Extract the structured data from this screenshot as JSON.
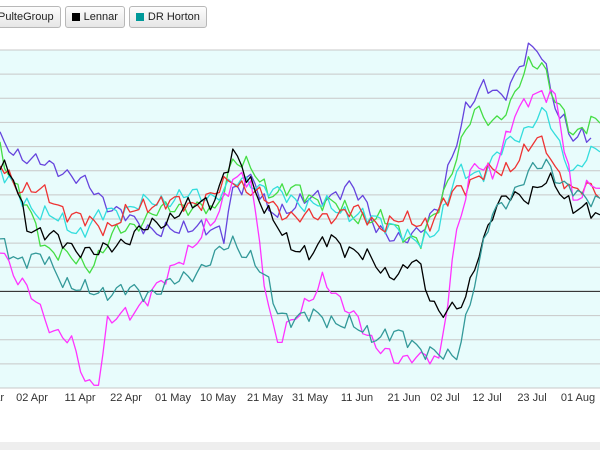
{
  "legend": {
    "items": [
      {
        "label": "PulteGroup",
        "color": "#ff33ff"
      },
      {
        "label": "Lennar",
        "color": "#000000"
      },
      {
        "label": "DR Horton",
        "color": "#009999"
      }
    ]
  },
  "chart_data": {
    "type": "line",
    "grid": true,
    "plot_background": "#e8fcfc",
    "ylim": [
      0,
      350
    ],
    "baseline_value": 100,
    "x_tick_labels": [
      "ar",
      "02 Apr",
      "11 Apr",
      "22 Apr",
      "01 May",
      "10 May",
      "21 May",
      "31 May",
      "11 Jun",
      "21 Jun",
      "02 Jul",
      "12 Jul",
      "23 Jul",
      "01 Aug"
    ],
    "series": [
      {
        "color": "#6644dd",
        "anchors": [
          [
            0,
            255
          ],
          [
            8,
            233
          ],
          [
            14,
            227
          ],
          [
            20,
            207
          ],
          [
            30,
            170
          ],
          [
            40,
            160
          ],
          [
            44,
            172
          ],
          [
            50,
            155
          ],
          [
            52,
            206
          ],
          [
            56,
            220
          ],
          [
            60,
            180
          ],
          [
            66,
            190
          ],
          [
            72,
            198
          ],
          [
            78,
            207
          ],
          [
            82,
            190
          ],
          [
            84,
            170
          ],
          [
            88,
            151
          ],
          [
            90,
            150
          ],
          [
            92,
            160
          ],
          [
            98,
            185
          ],
          [
            104,
            293
          ],
          [
            108,
            310
          ],
          [
            112,
            302
          ],
          [
            118,
            348
          ],
          [
            121,
            346
          ],
          [
            124,
            296
          ],
          [
            128,
            255
          ],
          [
            132,
            262
          ]
        ]
      },
      {
        "color": "#44dd44",
        "anchors": [
          [
            0,
            250
          ],
          [
            3,
            212
          ],
          [
            6,
            185
          ],
          [
            10,
            148
          ],
          [
            14,
            138
          ],
          [
            18,
            128
          ],
          [
            20,
            127
          ],
          [
            26,
            160
          ],
          [
            32,
            175
          ],
          [
            40,
            190
          ],
          [
            48,
            182
          ],
          [
            52,
            238
          ],
          [
            56,
            225
          ],
          [
            60,
            205
          ],
          [
            66,
            204
          ],
          [
            72,
            195
          ],
          [
            76,
            186
          ],
          [
            80,
            178
          ],
          [
            86,
            172
          ],
          [
            90,
            162
          ],
          [
            94,
            150
          ],
          [
            98,
            188
          ],
          [
            102,
            243
          ],
          [
            106,
            285
          ],
          [
            110,
            278
          ],
          [
            114,
            290
          ],
          [
            118,
            336
          ],
          [
            121,
            340
          ],
          [
            124,
            296
          ],
          [
            128,
            262
          ],
          [
            132,
            280
          ],
          [
            134,
            272
          ]
        ]
      },
      {
        "color": "#33dddd",
        "anchors": [
          [
            0,
            225
          ],
          [
            4,
            200
          ],
          [
            8,
            185
          ],
          [
            14,
            170
          ],
          [
            18,
            162
          ],
          [
            24,
            182
          ],
          [
            30,
            188
          ],
          [
            40,
            198
          ],
          [
            48,
            200
          ],
          [
            52,
            210
          ],
          [
            56,
            215
          ],
          [
            62,
            200
          ],
          [
            70,
            190
          ],
          [
            76,
            185
          ],
          [
            82,
            175
          ],
          [
            88,
            170
          ],
          [
            90,
            160
          ],
          [
            92,
            150
          ],
          [
            94,
            150
          ],
          [
            98,
            170
          ],
          [
            102,
            220
          ],
          [
            108,
            225
          ],
          [
            114,
            255
          ],
          [
            120,
            280
          ],
          [
            122,
            282
          ],
          [
            124,
            260
          ],
          [
            128,
            225
          ],
          [
            132,
            240
          ],
          [
            134,
            248
          ]
        ]
      },
      {
        "color": "#ee3333",
        "anchors": [
          [
            0,
            230
          ],
          [
            4,
            210
          ],
          [
            10,
            200
          ],
          [
            16,
            180
          ],
          [
            20,
            170
          ],
          [
            24,
            168
          ],
          [
            28,
            178
          ],
          [
            34,
            193
          ],
          [
            42,
            190
          ],
          [
            48,
            200
          ],
          [
            52,
            217
          ],
          [
            56,
            205
          ],
          [
            62,
            185
          ],
          [
            68,
            175
          ],
          [
            74,
            180
          ],
          [
            80,
            182
          ],
          [
            86,
            168
          ],
          [
            92,
            175
          ],
          [
            96,
            170
          ],
          [
            98,
            180
          ],
          [
            102,
            208
          ],
          [
            108,
            220
          ],
          [
            114,
            230
          ],
          [
            120,
            255
          ],
          [
            122,
            252
          ],
          [
            124,
            230
          ],
          [
            128,
            200
          ],
          [
            132,
            210
          ],
          [
            134,
            205
          ]
        ]
      },
      {
        "color": "#ff33ff",
        "anchors": [
          [
            0,
            150
          ],
          [
            4,
            110
          ],
          [
            8,
            90
          ],
          [
            12,
            60
          ],
          [
            16,
            45
          ],
          [
            18,
            20
          ],
          [
            20,
            5
          ],
          [
            22,
            10
          ],
          [
            24,
            65
          ],
          [
            30,
            82
          ],
          [
            36,
            106
          ],
          [
            40,
            135
          ],
          [
            44,
            150
          ],
          [
            48,
            175
          ],
          [
            52,
            220
          ],
          [
            56,
            210
          ],
          [
            60,
            85
          ],
          [
            62,
            50
          ],
          [
            66,
            70
          ],
          [
            72,
            115
          ],
          [
            76,
            85
          ],
          [
            80,
            75
          ],
          [
            84,
            40
          ],
          [
            88,
            30
          ],
          [
            92,
            35
          ],
          [
            94,
            30
          ],
          [
            98,
            27
          ],
          [
            102,
            165
          ],
          [
            106,
            230
          ],
          [
            110,
            225
          ],
          [
            114,
            270
          ],
          [
            118,
            300
          ],
          [
            121,
            310
          ],
          [
            124,
            300
          ],
          [
            128,
            195
          ],
          [
            132,
            215
          ],
          [
            134,
            205
          ]
        ]
      },
      {
        "color": "#000000",
        "anchors": [
          [
            0,
            230
          ],
          [
            3,
            215
          ],
          [
            6,
            170
          ],
          [
            10,
            160
          ],
          [
            14,
            150
          ],
          [
            18,
            145
          ],
          [
            22,
            138
          ],
          [
            26,
            150
          ],
          [
            32,
            163
          ],
          [
            40,
            182
          ],
          [
            48,
            198
          ],
          [
            52,
            240
          ],
          [
            56,
            215
          ],
          [
            60,
            180
          ],
          [
            64,
            150
          ],
          [
            70,
            140
          ],
          [
            74,
            155
          ],
          [
            80,
            140
          ],
          [
            86,
            120
          ],
          [
            90,
            120
          ],
          [
            92,
            130
          ],
          [
            94,
            122
          ],
          [
            96,
            95
          ],
          [
            98,
            82
          ],
          [
            100,
            80
          ],
          [
            102,
            80
          ],
          [
            104,
            90
          ],
          [
            106,
            130
          ],
          [
            110,
            180
          ],
          [
            114,
            200
          ],
          [
            118,
            200
          ],
          [
            122,
            212
          ],
          [
            124,
            210
          ],
          [
            128,
            190
          ],
          [
            132,
            180
          ],
          [
            134,
            175
          ]
        ]
      },
      {
        "color": "#339999",
        "anchors": [
          [
            0,
            150
          ],
          [
            4,
            135
          ],
          [
            10,
            133
          ],
          [
            16,
            105
          ],
          [
            20,
            98
          ],
          [
            26,
            102
          ],
          [
            32,
            98
          ],
          [
            40,
            110
          ],
          [
            48,
            135
          ],
          [
            52,
            152
          ],
          [
            56,
            136
          ],
          [
            60,
            105
          ],
          [
            62,
            80
          ],
          [
            66,
            72
          ],
          [
            72,
            75
          ],
          [
            80,
            60
          ],
          [
            84,
            55
          ],
          [
            88,
            55
          ],
          [
            92,
            48
          ],
          [
            96,
            38
          ],
          [
            98,
            33
          ],
          [
            100,
            30
          ],
          [
            102,
            35
          ],
          [
            106,
            110
          ],
          [
            110,
            180
          ],
          [
            114,
            200
          ],
          [
            118,
            220
          ],
          [
            122,
            235
          ],
          [
            126,
            210
          ],
          [
            130,
            195
          ],
          [
            134,
            198
          ]
        ]
      }
    ]
  }
}
